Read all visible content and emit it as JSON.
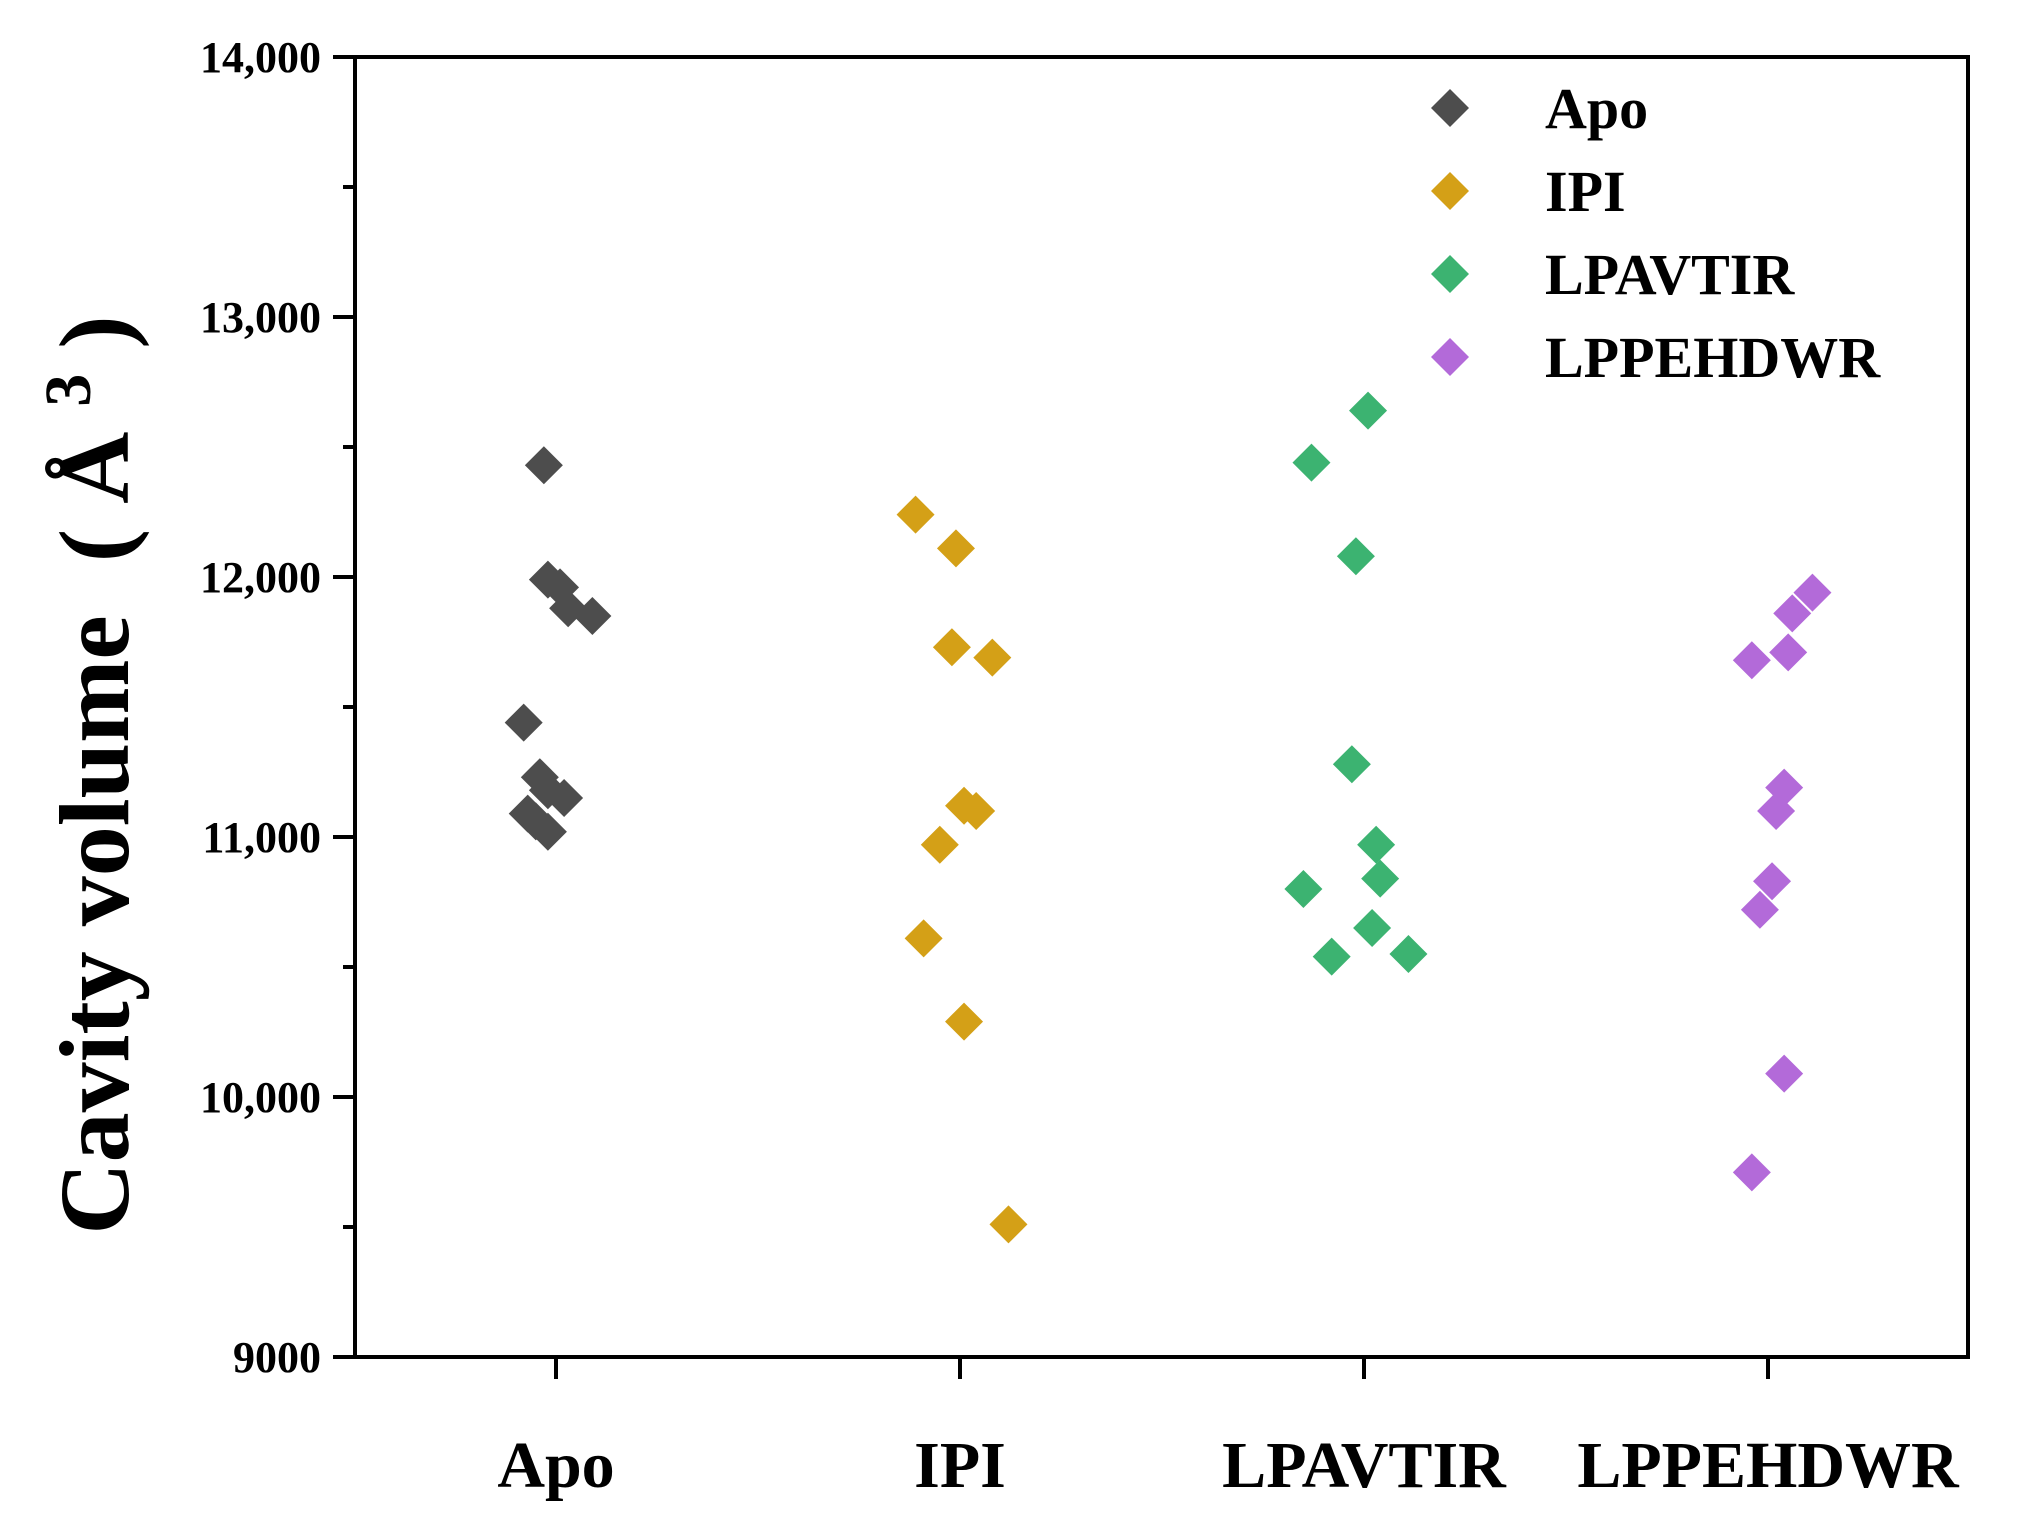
{
  "chart_data": {
    "type": "scatter",
    "title": "",
    "xlabel": "",
    "ylabel": "Cavity volume",
    "ylabel_unit": "Å",
    "ylabel_unit_exp": "3",
    "ylabel_paren_open": "(",
    "ylabel_paren_close": ")",
    "ylim": [
      9000,
      14000
    ],
    "y_ticks": [
      9000,
      10000,
      11000,
      12000,
      13000,
      14000
    ],
    "y_tick_labels": [
      "9000",
      "10,000",
      "11,000",
      "12,000",
      "13,000",
      "14,000"
    ],
    "categories": [
      "Apo",
      "IPI",
      "LPAVTIR",
      "LPPEHDWR"
    ],
    "legend_position": "top-right",
    "grid": false,
    "series": [
      {
        "name": "Apo",
        "color": "#4d4d4d",
        "marker": "diamond",
        "points": [
          {
            "offset": -0.03,
            "y": 12430
          },
          {
            "offset": -0.02,
            "y": 11990
          },
          {
            "offset": 0.01,
            "y": 11960
          },
          {
            "offset": 0.03,
            "y": 11880
          },
          {
            "offset": 0.09,
            "y": 11850
          },
          {
            "offset": -0.08,
            "y": 11440
          },
          {
            "offset": -0.04,
            "y": 11230
          },
          {
            "offset": -0.02,
            "y": 11180
          },
          {
            "offset": 0.02,
            "y": 11150
          },
          {
            "offset": -0.07,
            "y": 11090
          },
          {
            "offset": -0.05,
            "y": 11060
          },
          {
            "offset": -0.02,
            "y": 11020
          }
        ]
      },
      {
        "name": "IPI",
        "color": "#d4a017",
        "marker": "diamond",
        "points": [
          {
            "offset": -0.11,
            "y": 12240
          },
          {
            "offset": -0.01,
            "y": 12110
          },
          {
            "offset": -0.02,
            "y": 11730
          },
          {
            "offset": 0.08,
            "y": 11690
          },
          {
            "offset": 0.01,
            "y": 11120
          },
          {
            "offset": 0.04,
            "y": 11100
          },
          {
            "offset": -0.05,
            "y": 10970
          },
          {
            "offset": -0.09,
            "y": 10610
          },
          {
            "offset": 0.01,
            "y": 10290
          },
          {
            "offset": 0.12,
            "y": 9510
          }
        ]
      },
      {
        "name": "LPAVTIR",
        "color": "#3cb371",
        "marker": "diamond",
        "points": [
          {
            "offset": 0.01,
            "y": 12640
          },
          {
            "offset": -0.13,
            "y": 12440
          },
          {
            "offset": -0.02,
            "y": 12080
          },
          {
            "offset": -0.03,
            "y": 11280
          },
          {
            "offset": 0.03,
            "y": 10970
          },
          {
            "offset": 0.04,
            "y": 10840
          },
          {
            "offset": -0.15,
            "y": 10800
          },
          {
            "offset": 0.02,
            "y": 10650
          },
          {
            "offset": -0.08,
            "y": 10540
          },
          {
            "offset": 0.11,
            "y": 10550
          }
        ]
      },
      {
        "name": "LPPEHDWR",
        "color": "#b36ad9",
        "marker": "diamond",
        "points": [
          {
            "offset": 0.11,
            "y": 11940
          },
          {
            "offset": 0.06,
            "y": 11860
          },
          {
            "offset": 0.05,
            "y": 11710
          },
          {
            "offset": -0.04,
            "y": 11680
          },
          {
            "offset": 0.04,
            "y": 11190
          },
          {
            "offset": 0.02,
            "y": 11100
          },
          {
            "offset": 0.01,
            "y": 10830
          },
          {
            "offset": -0.02,
            "y": 10720
          },
          {
            "offset": 0.04,
            "y": 10090
          },
          {
            "offset": -0.04,
            "y": 9710
          }
        ]
      }
    ]
  }
}
